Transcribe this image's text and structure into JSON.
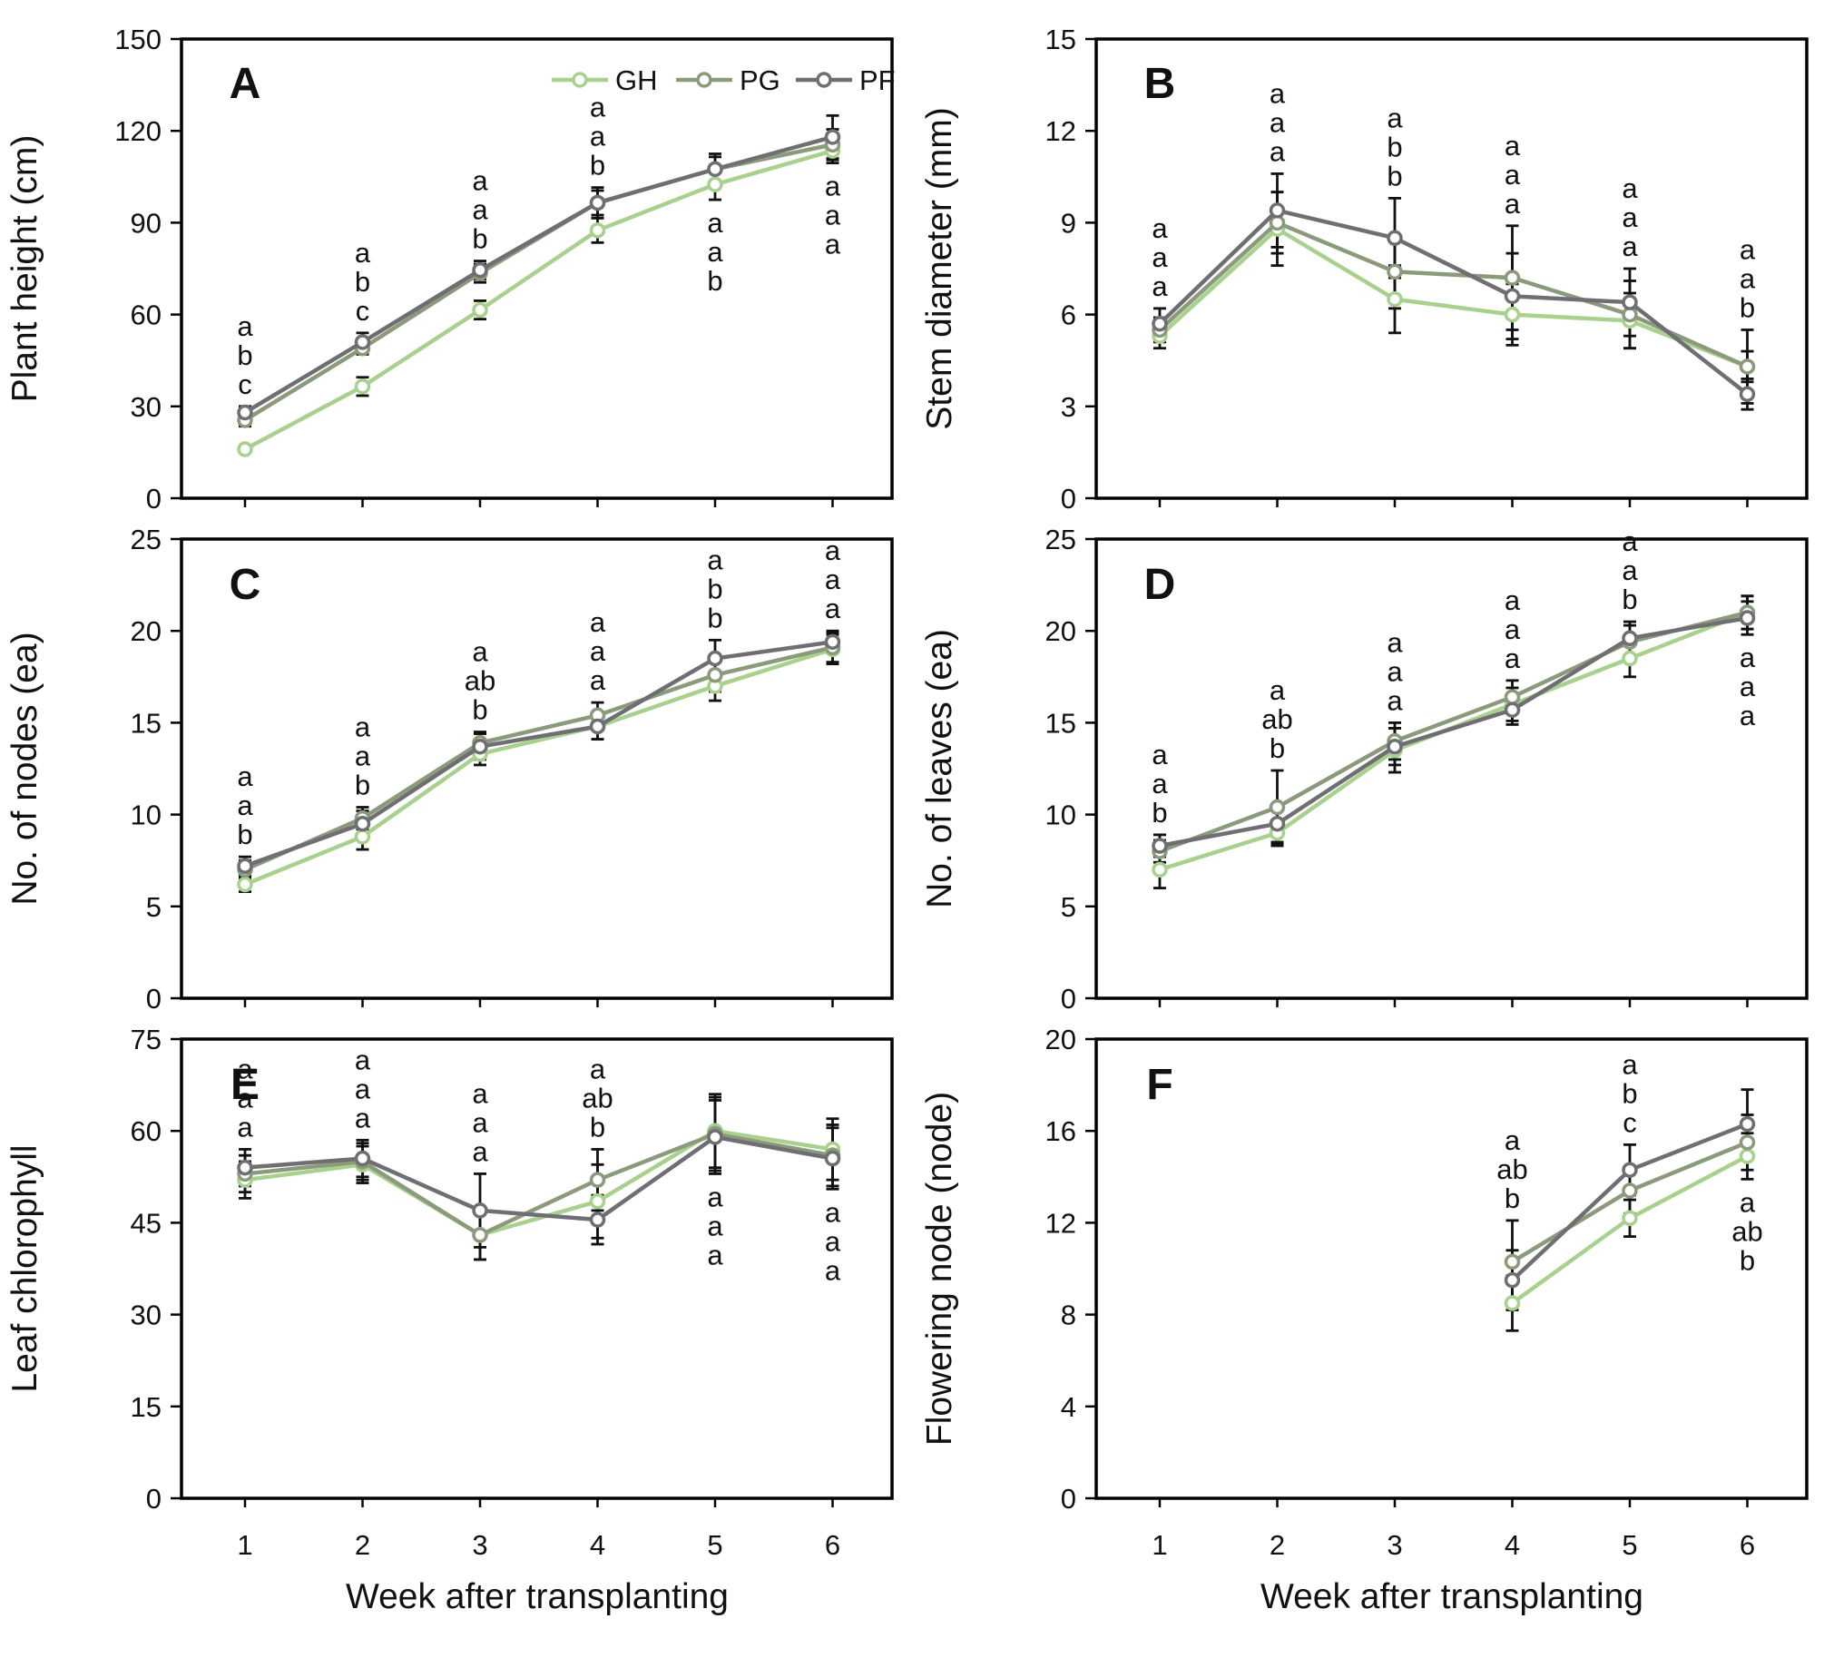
{
  "legend": [
    {
      "key": "GH",
      "label": "GH"
    },
    {
      "key": "PG",
      "label": "PG"
    },
    {
      "key": "PF",
      "label": "PF"
    }
  ],
  "colors": {
    "GH": "#a9d18e",
    "PG": "#8a9a7b",
    "PF": "#6f6f73",
    "axis": "#000000"
  },
  "x_axis_label": "Week after transplanting",
  "chart_data": [
    {
      "type": "line",
      "panel": "A",
      "ylabel": "Plant height (cm)",
      "ylim": [
        0,
        150
      ],
      "yticks": [
        0,
        30,
        60,
        90,
        120,
        150
      ],
      "xticks": [
        1,
        2,
        3,
        4,
        5,
        6
      ],
      "x": [
        1,
        2,
        3,
        4,
        5,
        6
      ],
      "series": [
        {
          "name": "GH",
          "values": [
            16,
            36.5,
            61.5,
            87.5,
            102.5,
            113.5
          ],
          "err": [
            1,
            3,
            3,
            4,
            5,
            4
          ]
        },
        {
          "name": "PG",
          "values": [
            25.5,
            49,
            73.5,
            96.5,
            107.5,
            115.5
          ],
          "err": [
            2,
            2,
            3,
            4,
            4,
            5
          ]
        },
        {
          "name": "PF",
          "values": [
            28,
            51,
            74.5,
            96.5,
            107.5,
            118
          ],
          "err": [
            2,
            3,
            3,
            5,
            5,
            7
          ]
        }
      ],
      "letters": [
        {
          "x": 1,
          "side": "above",
          "labels": [
            "a",
            "b",
            "c"
          ]
        },
        {
          "x": 2,
          "side": "above",
          "labels": [
            "a",
            "b",
            "c"
          ]
        },
        {
          "x": 3,
          "side": "above",
          "labels": [
            "a",
            "a",
            "b"
          ]
        },
        {
          "x": 4,
          "side": "above",
          "labels": [
            "a",
            "a",
            "b"
          ]
        },
        {
          "x": 5,
          "side": "below",
          "labels": [
            "a",
            "a",
            "b"
          ]
        },
        {
          "x": 6,
          "side": "below",
          "labels": [
            "a",
            "a",
            "a"
          ]
        }
      ]
    },
    {
      "type": "line",
      "panel": "B",
      "ylabel": "Stem diameter (mm)",
      "ylim": [
        0,
        15
      ],
      "yticks": [
        0,
        3,
        6,
        9,
        12,
        15
      ],
      "xticks": [
        1,
        2,
        3,
        4,
        5,
        6
      ],
      "x": [
        1,
        2,
        3,
        4,
        5,
        6
      ],
      "series": [
        {
          "name": "GH",
          "values": [
            5.3,
            8.8,
            6.5,
            6.0,
            5.8,
            4.3
          ],
          "err": [
            0.4,
            1.2,
            1.1,
            1.0,
            0.9,
            0.5
          ]
        },
        {
          "name": "PG",
          "values": [
            5.5,
            9.0,
            7.4,
            7.2,
            6.0,
            4.3
          ],
          "err": [
            0.4,
            1.0,
            1.2,
            1.7,
            1.1,
            1.2
          ]
        },
        {
          "name": "PF",
          "values": [
            5.7,
            9.4,
            8.5,
            6.6,
            6.4,
            3.4
          ],
          "err": [
            0.5,
            1.2,
            1.3,
            1.4,
            1.1,
            0.5
          ]
        }
      ],
      "letters": [
        {
          "x": 1,
          "side": "above",
          "labels": [
            "a",
            "a",
            "a"
          ]
        },
        {
          "x": 2,
          "side": "above",
          "labels": [
            "a",
            "a",
            "a"
          ]
        },
        {
          "x": 3,
          "side": "above",
          "labels": [
            "a",
            "b",
            "b"
          ]
        },
        {
          "x": 4,
          "side": "above",
          "labels": [
            "a",
            "a",
            "a"
          ]
        },
        {
          "x": 5,
          "side": "above",
          "labels": [
            "a",
            "a",
            "a"
          ]
        },
        {
          "x": 6,
          "side": "above",
          "labels": [
            "a",
            "a",
            "b"
          ]
        }
      ]
    },
    {
      "type": "line",
      "panel": "C",
      "ylabel": "No. of nodes (ea)",
      "ylim": [
        0,
        25
      ],
      "yticks": [
        0,
        5,
        10,
        15,
        20,
        25
      ],
      "xticks": [
        1,
        2,
        3,
        4,
        5,
        6
      ],
      "x": [
        1,
        2,
        3,
        4,
        5,
        6
      ],
      "series": [
        {
          "name": "GH",
          "values": [
            6.2,
            8.8,
            13.3,
            14.8,
            17.0,
            19.0
          ],
          "err": [
            0.4,
            0.7,
            0.6,
            0.7,
            0.8,
            0.8
          ]
        },
        {
          "name": "PG",
          "values": [
            7.0,
            9.8,
            13.9,
            15.4,
            17.6,
            19.1
          ],
          "err": [
            0.5,
            0.6,
            0.6,
            0.7,
            0.9,
            0.8
          ]
        },
        {
          "name": "PF",
          "values": [
            7.2,
            9.5,
            13.7,
            14.8,
            18.5,
            19.4
          ],
          "err": [
            0.5,
            0.7,
            0.7,
            0.7,
            1.0,
            0.6
          ]
        }
      ],
      "letters": [
        {
          "x": 1,
          "side": "above",
          "labels": [
            "a",
            "a",
            "b"
          ]
        },
        {
          "x": 2,
          "side": "above",
          "labels": [
            "a",
            "a",
            "b"
          ]
        },
        {
          "x": 3,
          "side": "above",
          "labels": [
            "a",
            "ab",
            "b"
          ]
        },
        {
          "x": 4,
          "side": "above",
          "labels": [
            "a",
            "a",
            "a"
          ]
        },
        {
          "x": 5,
          "side": "above",
          "labels": [
            "a",
            "b",
            "b"
          ]
        },
        {
          "x": 6,
          "side": "above",
          "labels": [
            "a",
            "a",
            "a"
          ]
        }
      ]
    },
    {
      "type": "line",
      "panel": "D",
      "ylabel": "No. of leaves (ea)",
      "ylim": [
        0,
        25
      ],
      "yticks": [
        0,
        5,
        10,
        15,
        20,
        25
      ],
      "xticks": [
        1,
        2,
        3,
        4,
        5,
        6
      ],
      "x": [
        1,
        2,
        3,
        4,
        5,
        6
      ],
      "series": [
        {
          "name": "GH",
          "values": [
            7.0,
            9.0,
            13.5,
            16.0,
            18.5,
            21.0
          ],
          "err": [
            1.0,
            0.7,
            1.2,
            0.9,
            1.0,
            0.9
          ]
        },
        {
          "name": "PG",
          "values": [
            8.0,
            10.4,
            14.0,
            16.4,
            19.4,
            21.0
          ],
          "err": [
            0.6,
            2.0,
            1.0,
            0.9,
            0.9,
            0.9
          ]
        },
        {
          "name": "PF",
          "values": [
            8.3,
            9.5,
            13.7,
            15.7,
            19.6,
            20.7
          ],
          "err": [
            0.6,
            1.0,
            1.0,
            0.8,
            0.9,
            0.9
          ]
        }
      ],
      "letters": [
        {
          "x": 1,
          "side": "above",
          "labels": [
            "a",
            "a",
            "b"
          ]
        },
        {
          "x": 2,
          "side": "above",
          "labels": [
            "a",
            "ab",
            "b"
          ]
        },
        {
          "x": 3,
          "side": "above",
          "labels": [
            "a",
            "a",
            "a"
          ]
        },
        {
          "x": 4,
          "side": "above",
          "labels": [
            "a",
            "a",
            "a"
          ]
        },
        {
          "x": 5,
          "side": "above",
          "labels": [
            "a",
            "a",
            "b"
          ]
        },
        {
          "x": 6,
          "side": "below",
          "labels": [
            "a",
            "a",
            "a"
          ]
        }
      ]
    },
    {
      "type": "line",
      "panel": "E",
      "ylabel": "Leaf chlorophyll",
      "ylim": [
        0,
        75
      ],
      "yticks": [
        0,
        15,
        30,
        45,
        60,
        75
      ],
      "xticks": [
        1,
        2,
        3,
        4,
        5,
        6
      ],
      "x": [
        1,
        2,
        3,
        4,
        5,
        6
      ],
      "series": [
        {
          "name": "GH",
          "values": [
            52,
            54.5,
            43,
            48.5,
            60,
            57
          ],
          "err": [
            3,
            3,
            4,
            6,
            6,
            5
          ]
        },
        {
          "name": "PG",
          "values": [
            53,
            55,
            43,
            52,
            59.5,
            56
          ],
          "err": [
            3,
            3,
            4,
            5,
            6,
            5
          ]
        },
        {
          "name": "PF",
          "values": [
            54,
            55.5,
            47,
            45.5,
            59,
            55.5
          ],
          "err": [
            3,
            3,
            6,
            4,
            6,
            5
          ]
        }
      ],
      "letters": [
        {
          "x": 1,
          "side": "above",
          "labels": [
            "a",
            "a",
            "a"
          ]
        },
        {
          "x": 2,
          "side": "above",
          "labels": [
            "a",
            "a",
            "a"
          ]
        },
        {
          "x": 3,
          "side": "above",
          "labels": [
            "a",
            "a",
            "a"
          ]
        },
        {
          "x": 4,
          "side": "above",
          "labels": [
            "a",
            "ab",
            "b"
          ]
        },
        {
          "x": 5,
          "side": "below",
          "labels": [
            "a",
            "a",
            "a"
          ]
        },
        {
          "x": 6,
          "side": "below",
          "labels": [
            "a",
            "a",
            "a"
          ]
        }
      ]
    },
    {
      "type": "line",
      "panel": "F",
      "ylabel": "Flowering node (node)",
      "ylim": [
        0,
        20
      ],
      "yticks": [
        0,
        4,
        8,
        12,
        16,
        20
      ],
      "xticks": [
        1,
        2,
        3,
        4,
        5,
        6
      ],
      "x": [
        4,
        5,
        6
      ],
      "series": [
        {
          "name": "GH",
          "values": [
            8.5,
            12.2,
            14.9
          ],
          "err": [
            1.2,
            0.8,
            1.0
          ]
        },
        {
          "name": "PG",
          "values": [
            10.3,
            13.4,
            15.5
          ],
          "err": [
            1.8,
            1.0,
            1.2
          ]
        },
        {
          "name": "PF",
          "values": [
            9.5,
            14.3,
            16.3
          ],
          "err": [
            1.3,
            1.1,
            1.5
          ]
        }
      ],
      "letters": [
        {
          "x": 4,
          "side": "above",
          "labels": [
            "a",
            "ab",
            "b"
          ]
        },
        {
          "x": 5,
          "side": "above",
          "labels": [
            "a",
            "b",
            "c"
          ]
        },
        {
          "x": 6,
          "side": "below",
          "labels": [
            "a",
            "ab",
            "b"
          ]
        }
      ]
    }
  ]
}
